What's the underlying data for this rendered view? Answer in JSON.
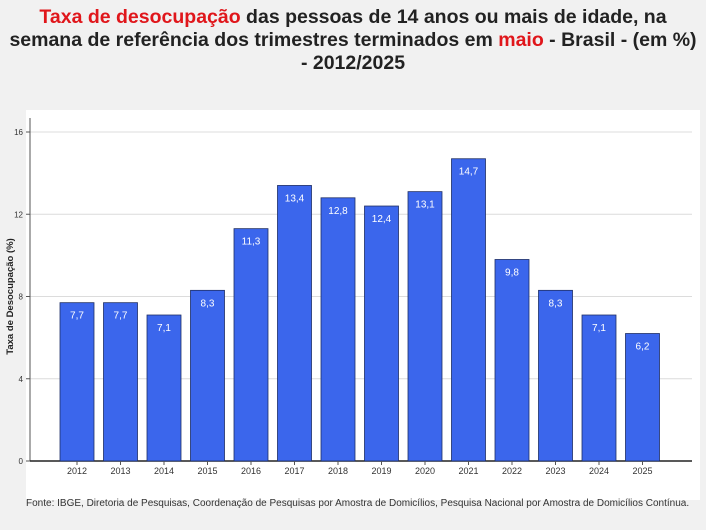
{
  "header": {
    "title_part1": "Taxa de desocupação",
    "title_part2": " das pessoas de 14 anos ou mais de idade, na semana de referência dos trimestres terminados em ",
    "title_part3": "maio",
    "title_part4": " - Brasil - (em %) - 2012/2025"
  },
  "colors": {
    "highlight": "#e0161b",
    "bar": "#3b66ec",
    "background": "#f1f1f1"
  },
  "chart_data": {
    "type": "bar",
    "categories": [
      "2012",
      "2013",
      "2014",
      "2015",
      "2016",
      "2017",
      "2018",
      "2019",
      "2020",
      "2021",
      "2022",
      "2023",
      "2024",
      "2025"
    ],
    "values": [
      7.7,
      7.7,
      7.1,
      8.3,
      11.3,
      13.4,
      12.8,
      12.4,
      13.1,
      14.7,
      9.8,
      8.3,
      7.1,
      6.2
    ],
    "value_labels": [
      "7,7",
      "7,7",
      "7,1",
      "8,3",
      "11,3",
      "13,4",
      "12,8",
      "12,4",
      "13,1",
      "14,7",
      "9,8",
      "8,3",
      "7,1",
      "6,2"
    ],
    "ylabel": "Taxa de Desocupação (%)",
    "xlabel": "",
    "ylim": [
      0,
      16
    ],
    "yticks": [
      0,
      4,
      8,
      12,
      16
    ],
    "grid": true
  },
  "footer": {
    "source": "Fonte: IBGE, Diretoria de Pesquisas, Coordenação de Pesquisas por Amostra de Domicílios, Pesquisa Nacional por Amostra de Domicílios Contínua."
  }
}
